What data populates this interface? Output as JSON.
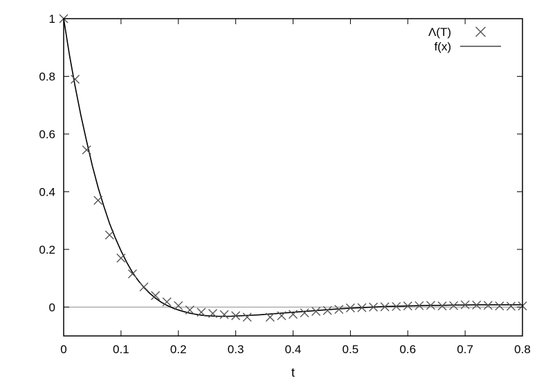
{
  "chart_data": {
    "type": "line",
    "title": "",
    "xlabel": "t",
    "ylabel": "",
    "xlim": [
      0,
      0.8
    ],
    "ylim": [
      -0.1,
      1.0
    ],
    "xticks": [
      0,
      0.1,
      0.2,
      0.3,
      0.4,
      0.5,
      0.6,
      0.7,
      0.8
    ],
    "yticks": [
      0,
      0.2,
      0.4,
      0.6,
      0.8,
      1
    ],
    "xtick_labels": [
      "0",
      "0.1",
      "0.2",
      "0.3",
      "0.4",
      "0.5",
      "0.6",
      "0.7",
      "0.8"
    ],
    "ytick_labels": [
      "0",
      "0.2",
      "0.4",
      "0.6",
      "0.8",
      "1"
    ],
    "zero_line": true,
    "grid": false,
    "legend_position": "top-right",
    "series": [
      {
        "name": "Λ(T)",
        "kind": "scatter",
        "marker": "x",
        "color": "#555555",
        "x": [
          0.0,
          0.02,
          0.04,
          0.06,
          0.08,
          0.1,
          0.12,
          0.14,
          0.16,
          0.18,
          0.2,
          0.22,
          0.24,
          0.26,
          0.28,
          0.3,
          0.32,
          0.36,
          0.38,
          0.4,
          0.42,
          0.44,
          0.46,
          0.48,
          0.5,
          0.52,
          0.54,
          0.56,
          0.58,
          0.6,
          0.62,
          0.64,
          0.66,
          0.68,
          0.7,
          0.72,
          0.74,
          0.76,
          0.78,
          0.8
        ],
        "y": [
          1.0,
          0.79,
          0.545,
          0.37,
          0.25,
          0.17,
          0.115,
          0.07,
          0.04,
          0.018,
          0.005,
          -0.01,
          -0.018,
          -0.022,
          -0.026,
          -0.03,
          -0.035,
          -0.035,
          -0.03,
          -0.025,
          -0.02,
          -0.015,
          -0.012,
          -0.008,
          -0.003,
          -0.002,
          0.0,
          0.001,
          0.002,
          0.004,
          0.005,
          0.006,
          0.004,
          0.005,
          0.008,
          0.007,
          0.006,
          0.004,
          0.003,
          0.004
        ]
      },
      {
        "name": "f(x)",
        "kind": "line",
        "color": "#000000",
        "x": [
          0.0,
          0.01,
          0.02,
          0.03,
          0.04,
          0.05,
          0.06,
          0.07,
          0.08,
          0.09,
          0.1,
          0.11,
          0.12,
          0.13,
          0.14,
          0.15,
          0.16,
          0.17,
          0.18,
          0.19,
          0.2,
          0.21,
          0.22,
          0.23,
          0.24,
          0.25,
          0.26,
          0.27,
          0.28,
          0.29,
          0.3,
          0.32,
          0.34,
          0.36,
          0.38,
          0.4,
          0.42,
          0.44,
          0.46,
          0.48,
          0.5,
          0.52,
          0.54,
          0.56,
          0.58,
          0.6,
          0.62,
          0.64,
          0.66,
          0.68,
          0.7,
          0.72,
          0.74,
          0.76,
          0.78,
          0.8
        ],
        "y": [
          1.0,
          0.875,
          0.765,
          0.665,
          0.575,
          0.49,
          0.415,
          0.35,
          0.29,
          0.24,
          0.195,
          0.155,
          0.12,
          0.092,
          0.068,
          0.048,
          0.031,
          0.017,
          0.006,
          -0.003,
          -0.01,
          -0.016,
          -0.021,
          -0.025,
          -0.028,
          -0.03,
          -0.031,
          -0.032,
          -0.032,
          -0.032,
          -0.031,
          -0.029,
          -0.027,
          -0.024,
          -0.021,
          -0.018,
          -0.015,
          -0.012,
          -0.009,
          -0.006,
          -0.004,
          -0.002,
          0.0,
          0.002,
          0.003,
          0.004,
          0.005,
          0.006,
          0.006,
          0.007,
          0.007,
          0.008,
          0.008,
          0.008,
          0.008,
          0.008
        ]
      }
    ]
  }
}
